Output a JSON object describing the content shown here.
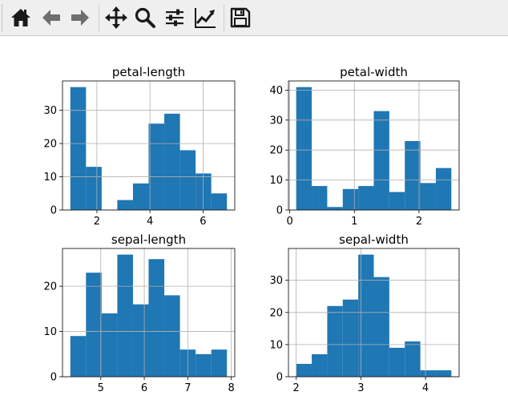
{
  "toolbar": {
    "buttons": [
      {
        "name": "home-button",
        "icon": "home-icon"
      },
      {
        "name": "back-button",
        "icon": "arrow-left-icon"
      },
      {
        "name": "forward-button",
        "icon": "arrow-right-icon"
      },
      {
        "name": "pan-button",
        "icon": "move-icon"
      },
      {
        "name": "zoom-button",
        "icon": "magnifier-icon"
      },
      {
        "name": "configure-subplots-button",
        "icon": "sliders-icon"
      },
      {
        "name": "edit-axes-button",
        "icon": "line-chart-icon"
      },
      {
        "name": "save-button",
        "icon": "floppy-disk-icon"
      }
    ]
  },
  "colors": {
    "bar": "#1f77b4",
    "grid": "#b0b0b0",
    "toolbar_icon": "#1a1a1a",
    "toolbar_icon_disabled": "#6e6e6e"
  },
  "chart_data": [
    {
      "type": "bar",
      "title": "petal-length",
      "bin_edges": [
        1.0,
        1.59,
        2.18,
        2.77,
        3.36,
        3.95,
        4.54,
        5.13,
        5.72,
        6.31,
        6.9
      ],
      "values": [
        37,
        13,
        0,
        3,
        8,
        26,
        29,
        18,
        11,
        5
      ],
      "xlim": [
        0.705,
        7.195
      ],
      "ylim": [
        0,
        38.85
      ],
      "xticks": [
        2,
        4,
        6
      ],
      "yticks": [
        0,
        10,
        20,
        30
      ],
      "grid": true
    },
    {
      "type": "bar",
      "title": "petal-width",
      "bin_edges": [
        0.1,
        0.34,
        0.58,
        0.82,
        1.06,
        1.3,
        1.54,
        1.78,
        2.02,
        2.26,
        2.5
      ],
      "values": [
        41,
        8,
        1,
        7,
        8,
        33,
        6,
        23,
        9,
        14
      ],
      "xlim": [
        -0.02,
        2.62
      ],
      "ylim": [
        0,
        43.05
      ],
      "xticks": [
        0,
        1,
        2
      ],
      "yticks": [
        0,
        10,
        20,
        30,
        40
      ],
      "grid": true
    },
    {
      "type": "bar",
      "title": "sepal-length",
      "bin_edges": [
        4.3,
        4.66,
        5.02,
        5.38,
        5.74,
        6.1,
        6.46,
        6.82,
        7.18,
        7.54,
        7.9
      ],
      "values": [
        9,
        23,
        14,
        27,
        16,
        26,
        18,
        6,
        5,
        6
      ],
      "xlim": [
        4.12,
        8.08
      ],
      "ylim": [
        0,
        28.35
      ],
      "xticks": [
        5,
        6,
        7,
        8
      ],
      "yticks": [
        0,
        10,
        20
      ],
      "grid": true
    },
    {
      "type": "bar",
      "title": "sepal-width",
      "bin_edges": [
        2.0,
        2.24,
        2.48,
        2.72,
        2.96,
        3.2,
        3.44,
        3.68,
        3.92,
        4.16,
        4.4
      ],
      "values": [
        4,
        7,
        22,
        24,
        38,
        31,
        9,
        11,
        2,
        2
      ],
      "xlim": [
        1.88,
        4.52
      ],
      "ylim": [
        0,
        39.9
      ],
      "xticks": [
        2,
        3,
        4
      ],
      "yticks": [
        0,
        10,
        20,
        30
      ],
      "grid": true
    }
  ]
}
